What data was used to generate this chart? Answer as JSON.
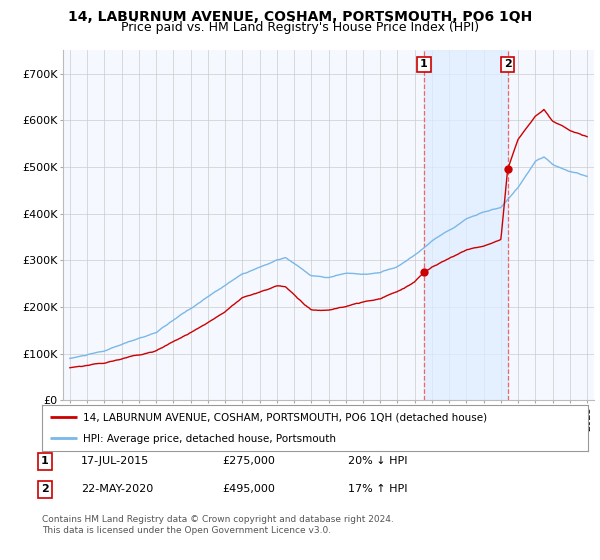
{
  "title": "14, LABURNUM AVENUE, COSHAM, PORTSMOUTH, PO6 1QH",
  "subtitle": "Price paid vs. HM Land Registry's House Price Index (HPI)",
  "ylabel_ticks": [
    "£0",
    "£100K",
    "£200K",
    "£300K",
    "£400K",
    "£500K",
    "£600K",
    "£700K"
  ],
  "ylim": [
    0,
    750000
  ],
  "xlim_start": 1994.6,
  "xlim_end": 2025.4,
  "sale1_date": 2015.54,
  "sale1_price": 275000,
  "sale1_label": "1",
  "sale2_date": 2020.39,
  "sale2_price": 495000,
  "sale2_label": "2",
  "hpi_color": "#7ab8e8",
  "price_color": "#cc0000",
  "vline_color": "#ee6666",
  "shade_color": "#ddeeff",
  "grid_color": "#cccccc",
  "background_color": "#ffffff",
  "plot_bg_color": "#f5f8ff",
  "legend_line1": "14, LABURNUM AVENUE, COSHAM, PORTSMOUTH, PO6 1QH (detached house)",
  "legend_line2": "HPI: Average price, detached house, Portsmouth",
  "table_row1": [
    "1",
    "17-JUL-2015",
    "£275,000",
    "20% ↓ HPI"
  ],
  "table_row2": [
    "2",
    "22-MAY-2020",
    "£495,000",
    "17% ↑ HPI"
  ],
  "footnote": "Contains HM Land Registry data © Crown copyright and database right 2024.\nThis data is licensed under the Open Government Licence v3.0.",
  "title_fontsize": 10,
  "subtitle_fontsize": 9
}
